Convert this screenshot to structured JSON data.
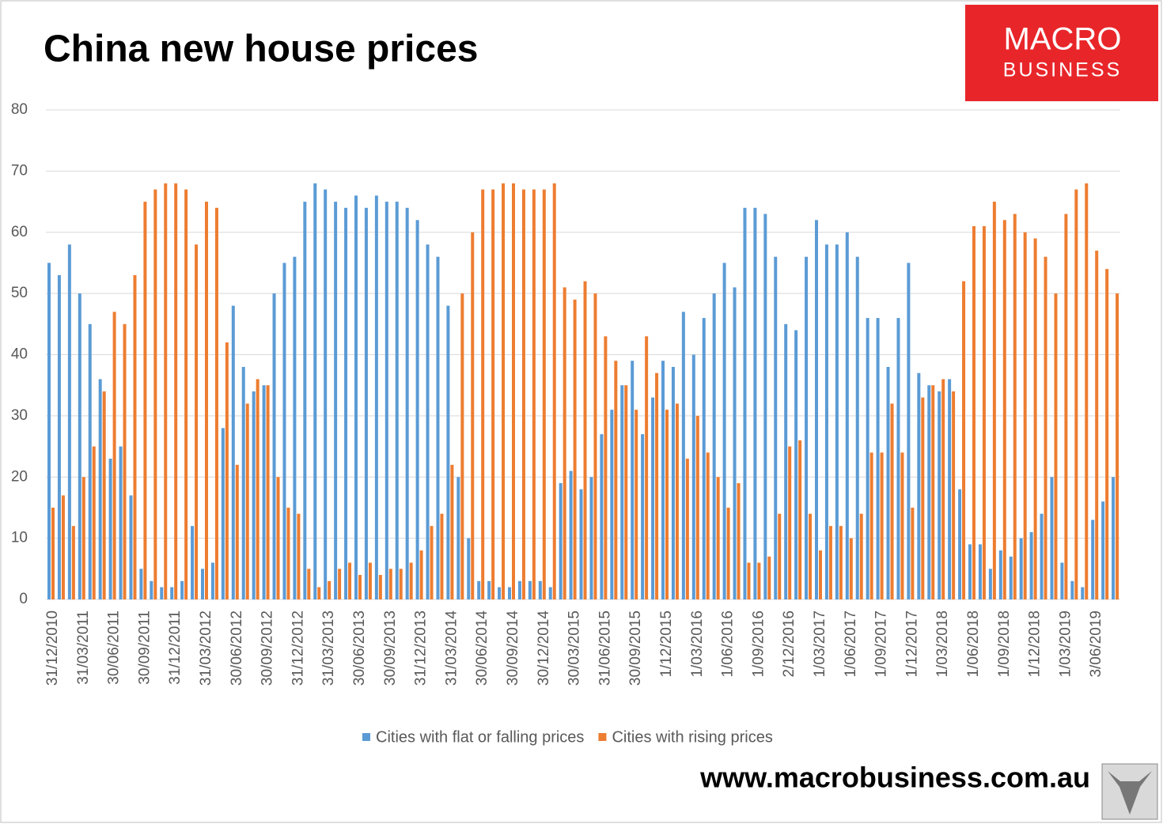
{
  "chart_data": {
    "type": "bar",
    "title": "China new house prices",
    "logo": {
      "line1": "MACRO",
      "line2": "BUSINESS"
    },
    "source": "www.macrobusiness.com.au",
    "categories": [
      "31/12/2010",
      null,
      null,
      "31/03/2011",
      null,
      null,
      "30/06/2011",
      null,
      null,
      "30/09/2011",
      null,
      null,
      "31/12/2011",
      null,
      null,
      "31/03/2012",
      null,
      null,
      "30/06/2012",
      null,
      null,
      "30/09/2012",
      null,
      null,
      "31/12/2012",
      null,
      null,
      "31/03/2013",
      null,
      null,
      "30/06/2013",
      null,
      null,
      "30/09/2013",
      null,
      null,
      "31/12/2013",
      null,
      null,
      "31/03/2014",
      null,
      null,
      "30/06/2014",
      null,
      null,
      "30/09/2014",
      null,
      null,
      "30/12/2014",
      null,
      null,
      "30/03/2015",
      null,
      null,
      "31/06/2015",
      null,
      null,
      "30/09/2015",
      null,
      null,
      "1/12/2015",
      null,
      null,
      "1/03/2016",
      null,
      null,
      "1/06/2016",
      null,
      null,
      "1/09/2016",
      null,
      null,
      "2/12/2016",
      null,
      null,
      "1/03/2017",
      null,
      null,
      "1/06/2017",
      null,
      null,
      "1/09/2017",
      null,
      null,
      "1/12/2017",
      null,
      null,
      "1/03/2018",
      null,
      null,
      "1/06/2018",
      null,
      null,
      "1/09/2018",
      null,
      null,
      "1/12/2018",
      null,
      null,
      "1/03/2019",
      null,
      null,
      "3/06/2019",
      null,
      null
    ],
    "series": [
      {
        "name": "Cities with flat or falling prices",
        "color": "#5b9bd5",
        "values": [
          55,
          53,
          58,
          50,
          45,
          36,
          23,
          25,
          17,
          5,
          3,
          2,
          2,
          3,
          12,
          5,
          6,
          28,
          48,
          38,
          34,
          35,
          50,
          55,
          56,
          65,
          68,
          67,
          65,
          64,
          66,
          64,
          66,
          65,
          65,
          64,
          62,
          58,
          56,
          48,
          20,
          10,
          3,
          3,
          2,
          2,
          3,
          3,
          3,
          2,
          19,
          21,
          18,
          20,
          27,
          31,
          35,
          39,
          27,
          33,
          39,
          38,
          47,
          40,
          46,
          50,
          55,
          51,
          64,
          64,
          63,
          56,
          45,
          44,
          56,
          62,
          58,
          58,
          60,
          56,
          46,
          46,
          38,
          46,
          55,
          37,
          35,
          34,
          36,
          18,
          9,
          9,
          5,
          8,
          7,
          10,
          11,
          14,
          20,
          6,
          3,
          2,
          13,
          16,
          20
        ]
      },
      {
        "name": "Cities with rising prices",
        "color": "#ed7d31",
        "values": [
          15,
          17,
          12,
          20,
          25,
          34,
          47,
          45,
          53,
          65,
          67,
          68,
          68,
          67,
          58,
          65,
          64,
          42,
          22,
          32,
          36,
          35,
          20,
          15,
          14,
          5,
          2,
          3,
          5,
          6,
          4,
          6,
          4,
          5,
          5,
          6,
          8,
          12,
          14,
          22,
          50,
          60,
          67,
          67,
          68,
          68,
          67,
          67,
          67,
          68,
          51,
          49,
          52,
          50,
          43,
          39,
          35,
          31,
          43,
          37,
          31,
          32,
          23,
          30,
          24,
          20,
          15,
          19,
          6,
          6,
          7,
          14,
          25,
          26,
          14,
          8,
          12,
          12,
          10,
          14,
          24,
          24,
          32,
          24,
          15,
          33,
          35,
          36,
          34,
          52,
          61,
          61,
          65,
          62,
          63,
          60,
          59,
          56,
          50,
          63,
          67,
          68,
          57,
          54,
          50
        ]
      }
    ],
    "ylim": [
      0,
      80
    ],
    "yticks": [
      0,
      10,
      20,
      30,
      40,
      50,
      60,
      70,
      80
    ],
    "grid": true,
    "legend": "bottom"
  }
}
